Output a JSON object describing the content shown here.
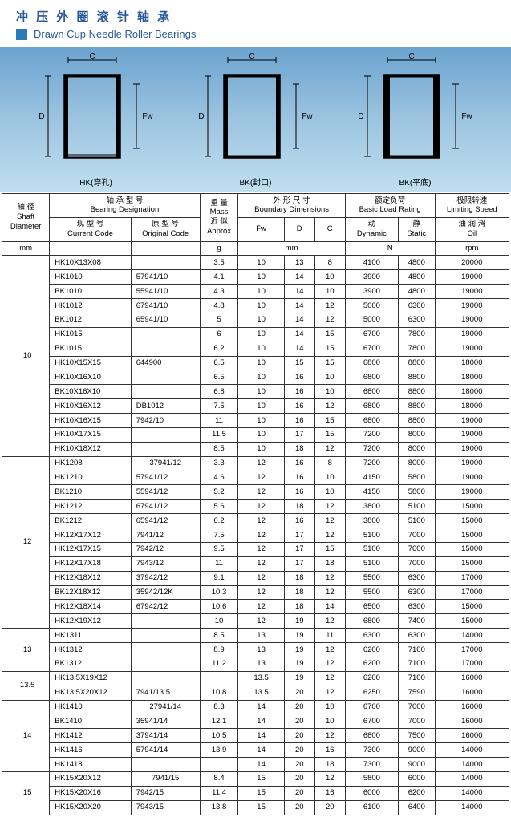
{
  "header": {
    "title_cn": "冲 压 外 圈 滚 针 轴 承",
    "title_en": "Drawn Cup Needle Roller Bearings"
  },
  "diagrams": [
    {
      "label": "HK(穿孔)",
      "d_label": "D",
      "c_label": "C",
      "fw_label": "Fw",
      "open_bottom": true,
      "thick_sides": false
    },
    {
      "label": "BK(封口)",
      "d_label": "D",
      "c_label": "C",
      "fw_label": "Fw",
      "open_bottom": false,
      "thick_sides": false
    },
    {
      "label": "BK(平底)",
      "d_label": "D",
      "c_label": "C",
      "fw_label": "Fw",
      "open_bottom": false,
      "thick_sides": true
    }
  ],
  "table_headers": {
    "shaft": {
      "line1": "轴 径",
      "line2": "Shaft",
      "line3": "Diameter",
      "unit": "mm"
    },
    "designation": {
      "line1": "轴 承 型 号",
      "line2": "Bearing Designation",
      "current": {
        "line1": "现 型 号",
        "line2": "Current Code"
      },
      "original": {
        "line1": "原 型 号",
        "line2": "Original Code"
      }
    },
    "mass": {
      "line1": "重 量",
      "line2": "Mass",
      "line3": "近 似",
      "line4": "Approx",
      "unit": "g"
    },
    "boundary": {
      "line1": "外 形 尺 寸",
      "line2": "Boundary Dimensions",
      "fw": "Fw",
      "d": "D",
      "c": "C",
      "unit": "mm"
    },
    "load": {
      "line1": "额定负荷",
      "line2": "Basic Load Rating",
      "dynamic": {
        "line1": "动",
        "line2": "Dynamic"
      },
      "static": {
        "line1": "静",
        "line2": "Static"
      },
      "unit": "N"
    },
    "speed": {
      "line1": "极限转速",
      "line2": "Limiting Speed",
      "oil": {
        "line1": "油 润 滑",
        "line2": "Oil"
      },
      "unit": "rpm"
    }
  },
  "groups": [
    {
      "shaft": "10",
      "rows": [
        {
          "cur": "HK10X13X08",
          "org": "",
          "mass": "3.5",
          "fw": "10",
          "d": "13",
          "c": "8",
          "dyn": "4100",
          "stat": "4800",
          "rpm": "20000"
        },
        {
          "cur": "HK1010",
          "org": "57941/10",
          "mass": "4.1",
          "fw": "10",
          "d": "14",
          "c": "10",
          "dyn": "3900",
          "stat": "4800",
          "rpm": "19000"
        },
        {
          "cur": "BK1010",
          "org": "55941/10",
          "mass": "4.3",
          "fw": "10",
          "d": "14",
          "c": "10",
          "dyn": "3900",
          "stat": "4800",
          "rpm": "19000"
        },
        {
          "cur": "HK1012",
          "org": "67941/10",
          "mass": "4.8",
          "fw": "10",
          "d": "14",
          "c": "12",
          "dyn": "5000",
          "stat": "6300",
          "rpm": "19000"
        },
        {
          "cur": "BK1012",
          "org": "65941/10",
          "mass": "5",
          "fw": "10",
          "d": "14",
          "c": "12",
          "dyn": "5000",
          "stat": "6300",
          "rpm": "19000"
        },
        {
          "cur": "HK1015",
          "org": "",
          "mass": "6",
          "fw": "10",
          "d": "14",
          "c": "15",
          "dyn": "6700",
          "stat": "7800",
          "rpm": "19000"
        },
        {
          "cur": "BK1015",
          "org": "",
          "mass": "6.2",
          "fw": "10",
          "d": "14",
          "c": "15",
          "dyn": "6700",
          "stat": "7800",
          "rpm": "19000"
        },
        {
          "cur": "HK10X15X15",
          "org": "644900",
          "mass": "6.5",
          "fw": "10",
          "d": "15",
          "c": "15",
          "dyn": "6800",
          "stat": "8800",
          "rpm": "18000"
        },
        {
          "cur": "HK10X16X10",
          "org": "",
          "mass": "6.5",
          "fw": "10",
          "d": "16",
          "c": "10",
          "dyn": "6800",
          "stat": "8800",
          "rpm": "18000"
        },
        {
          "cur": "BK10X16X10",
          "org": "",
          "mass": "6.8",
          "fw": "10",
          "d": "16",
          "c": "10",
          "dyn": "6800",
          "stat": "8800",
          "rpm": "18000"
        },
        {
          "cur": "HK10X16X12",
          "org": "DB1012",
          "mass": "7.5",
          "fw": "10",
          "d": "16",
          "c": "12",
          "dyn": "6800",
          "stat": "8800",
          "rpm": "18000"
        },
        {
          "cur": "HK10X16X15",
          "org": "7942/10",
          "mass": "11",
          "fw": "10",
          "d": "16",
          "c": "15",
          "dyn": "6800",
          "stat": "8800",
          "rpm": "19000"
        },
        {
          "cur": "HK10X17X15",
          "org": "",
          "mass": "11.5",
          "fw": "10",
          "d": "17",
          "c": "15",
          "dyn": "7200",
          "stat": "8000",
          "rpm": "19000"
        },
        {
          "cur": "HK10X18X12",
          "org": "",
          "mass": "8.5",
          "fw": "10",
          "d": "18",
          "c": "12",
          "dyn": "7200",
          "stat": "8000",
          "rpm": "19000"
        }
      ]
    },
    {
      "shaft": "12",
      "rows": [
        {
          "cur": "HK1208",
          "org": "37941/12",
          "mass": "3.3",
          "fw": "12",
          "d": "16",
          "c": "8",
          "dyn": "7200",
          "stat": "8000",
          "rpm": "19000"
        },
        {
          "cur": "HK1210",
          "org": "57941/12",
          "mass": "4.6",
          "fw": "12",
          "d": "16",
          "c": "10",
          "dyn": "4150",
          "stat": "5800",
          "rpm": "19000"
        },
        {
          "cur": "BK1210",
          "org": "55941/12",
          "mass": "5.2",
          "fw": "12",
          "d": "16",
          "c": "10",
          "dyn": "4150",
          "stat": "5800",
          "rpm": "19000"
        },
        {
          "cur": "HK1212",
          "org": "67941/12",
          "mass": "5.6",
          "fw": "12",
          "d": "18",
          "c": "12",
          "dyn": "3800",
          "stat": "5100",
          "rpm": "15000"
        },
        {
          "cur": "BK1212",
          "org": "65941/12",
          "mass": "6.2",
          "fw": "12",
          "d": "16",
          "c": "12",
          "dyn": "3800",
          "stat": "5100",
          "rpm": "15000"
        },
        {
          "cur": "HK12X17X12",
          "org": "7941/12",
          "mass": "7.5",
          "fw": "12",
          "d": "17",
          "c": "12",
          "dyn": "5100",
          "stat": "7000",
          "rpm": "15000"
        },
        {
          "cur": "HK12X17X15",
          "org": "7942/12",
          "mass": "9.5",
          "fw": "12",
          "d": "17",
          "c": "15",
          "dyn": "5100",
          "stat": "7000",
          "rpm": "15000"
        },
        {
          "cur": "HK12X17X18",
          "org": "7943/12",
          "mass": "11",
          "fw": "12",
          "d": "17",
          "c": "18",
          "dyn": "5100",
          "stat": "7000",
          "rpm": "15000"
        },
        {
          "cur": "HK12X18X12",
          "org": "37942/12",
          "mass": "9.1",
          "fw": "12",
          "d": "18",
          "c": "12",
          "dyn": "5500",
          "stat": "6300",
          "rpm": "17000"
        },
        {
          "cur": "BK12X18X12",
          "org": "35942/12K",
          "mass": "10.3",
          "fw": "12",
          "d": "18",
          "c": "12",
          "dyn": "5500",
          "stat": "6300",
          "rpm": "17000"
        },
        {
          "cur": "HK12X18X14",
          "org": "67942/12",
          "mass": "10.6",
          "fw": "12",
          "d": "18",
          "c": "14",
          "dyn": "6500",
          "stat": "6300",
          "rpm": "15000"
        },
        {
          "cur": "HK12X19X12",
          "org": "",
          "mass": "10",
          "fw": "12",
          "d": "19",
          "c": "12",
          "dyn": "6800",
          "stat": "7400",
          "rpm": "15000"
        }
      ]
    },
    {
      "shaft": "13",
      "rows": [
        {
          "cur": "HK1311",
          "org": "",
          "mass": "8.5",
          "fw": "13",
          "d": "19",
          "c": "11",
          "dyn": "6300",
          "stat": "6300",
          "rpm": "14000"
        },
        {
          "cur": "HK1312",
          "org": "",
          "mass": "8.9",
          "fw": "13",
          "d": "19",
          "c": "12",
          "dyn": "6200",
          "stat": "7100",
          "rpm": "17000"
        },
        {
          "cur": "BK1312",
          "org": "",
          "mass": "11.2",
          "fw": "13",
          "d": "19",
          "c": "12",
          "dyn": "6200",
          "stat": "7100",
          "rpm": "17000"
        }
      ]
    },
    {
      "shaft": "13.5",
      "rows": [
        {
          "cur": "HK13.5X19X12",
          "org": "",
          "mass": "",
          "fw": "13.5",
          "d": "19",
          "c": "12",
          "dyn": "6200",
          "stat": "7100",
          "rpm": "16000"
        },
        {
          "cur": "HK13.5X20X12",
          "org": "7941/13.5",
          "mass": "10.8",
          "fw": "13.5",
          "d": "20",
          "c": "12",
          "dyn": "6250",
          "stat": "7590",
          "rpm": "16000"
        }
      ]
    },
    {
      "shaft": "14",
      "rows": [
        {
          "cur": "HK1410",
          "org": "27941/14",
          "mass": "8.3",
          "fw": "14",
          "d": "20",
          "c": "10",
          "dyn": "6700",
          "stat": "7000",
          "rpm": "16000"
        },
        {
          "cur": "BK1410",
          "org": "35941/14",
          "mass": "12.1",
          "fw": "14",
          "d": "20",
          "c": "10",
          "dyn": "6700",
          "stat": "7000",
          "rpm": "16000"
        },
        {
          "cur": "HK1412",
          "org": "37941/14",
          "mass": "10.5",
          "fw": "14",
          "d": "20",
          "c": "12",
          "dyn": "6800",
          "stat": "7500",
          "rpm": "16000"
        },
        {
          "cur": "HK1416",
          "org": "57941/14",
          "mass": "13.9",
          "fw": "14",
          "d": "20",
          "c": "16",
          "dyn": "7300",
          "stat": "9000",
          "rpm": "14000"
        },
        {
          "cur": "HK1418",
          "org": "",
          "mass": "",
          "fw": "14",
          "d": "20",
          "c": "18",
          "dyn": "7300",
          "stat": "9000",
          "rpm": "14000"
        }
      ]
    },
    {
      "shaft": "15",
      "rows": [
        {
          "cur": "HK15X20X12",
          "org": "7941/15",
          "mass": "8.4",
          "fw": "15",
          "d": "20",
          "c": "12",
          "dyn": "5800",
          "stat": "6000",
          "rpm": "14000"
        },
        {
          "cur": "HK15X20X16",
          "org": "7942/15",
          "mass": "11.4",
          "fw": "15",
          "d": "20",
          "c": "16",
          "dyn": "6000",
          "stat": "6200",
          "rpm": "14000"
        },
        {
          "cur": "HK15X20X20",
          "org": "7943/15",
          "mass": "13.8",
          "fw": "15",
          "d": "20",
          "c": "20",
          "dyn": "6100",
          "stat": "6400",
          "rpm": "14000"
        }
      ]
    }
  ]
}
